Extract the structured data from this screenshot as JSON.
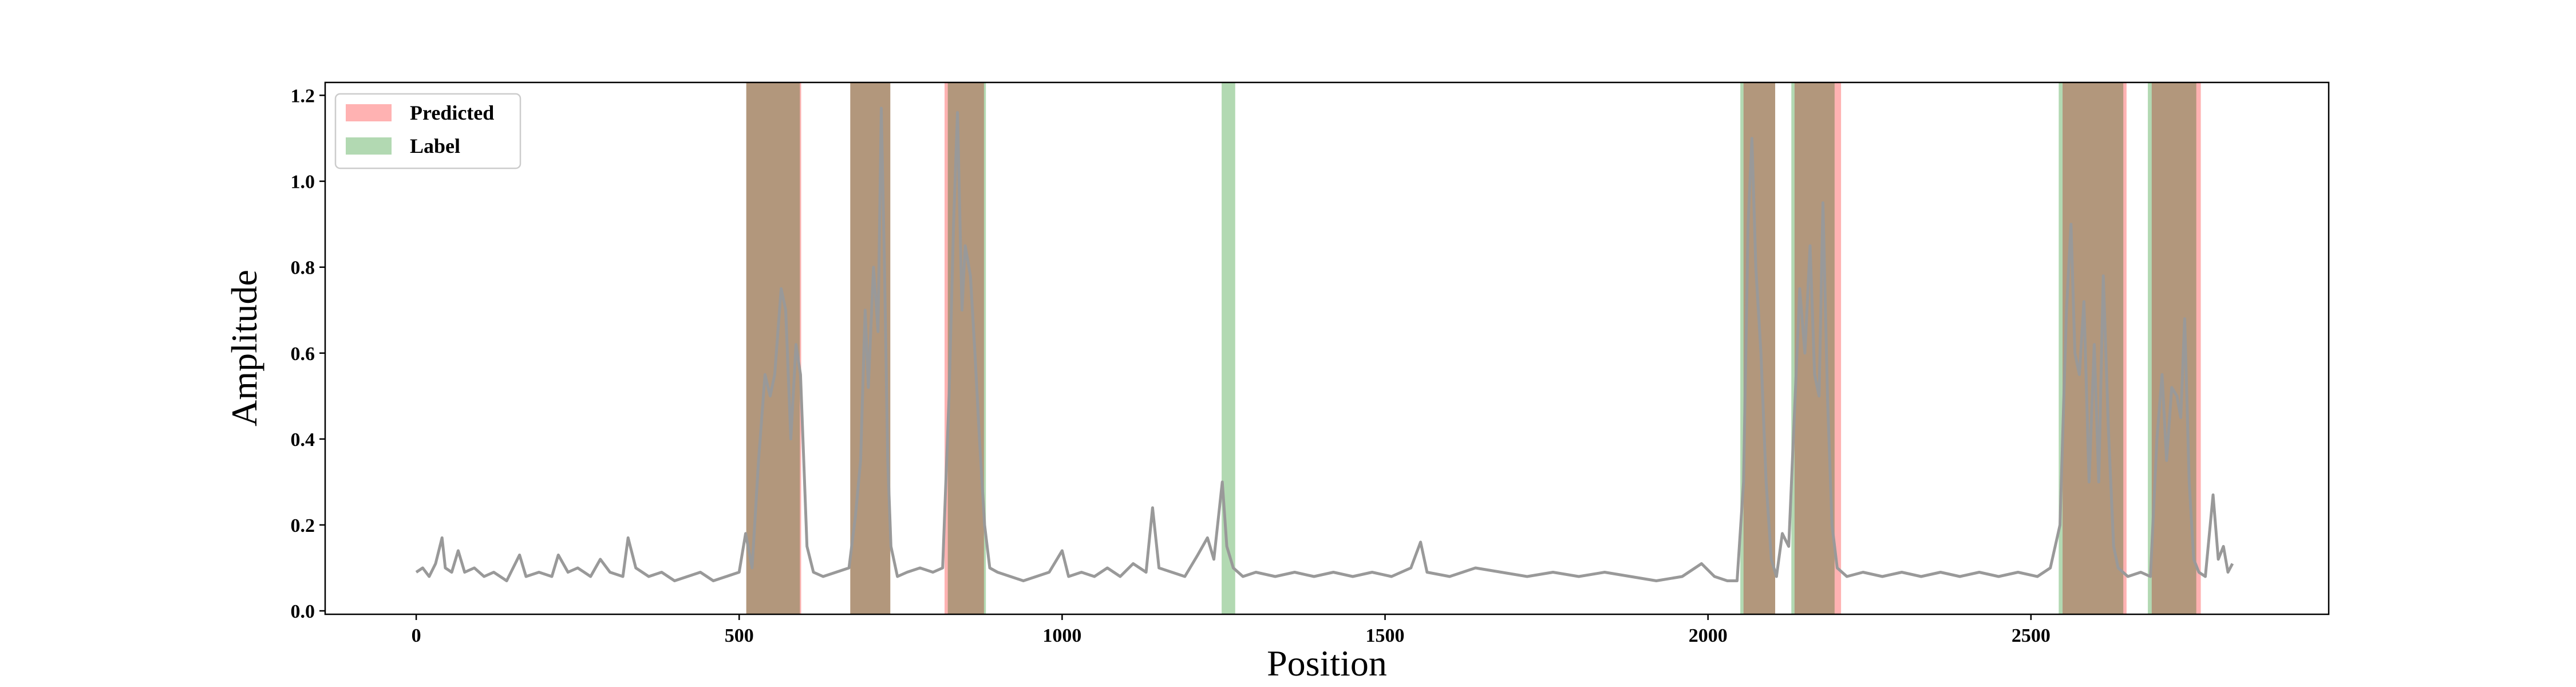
{
  "chart_data": {
    "type": "line",
    "xlabel": "Position",
    "ylabel": "Amplitude",
    "xlim": [
      -141,
      2961
    ],
    "ylim": [
      -0.008,
      1.23
    ],
    "xticks": [
      0,
      500,
      1000,
      1500,
      2000,
      2500
    ],
    "yticks": [
      {
        "value": 0,
        "label": "0.0"
      },
      0.2,
      0.4,
      0.6,
      0.8,
      {
        "value": 1,
        "label": "1.0"
      },
      1.2
    ],
    "legend": "upper left",
    "x": [
      0,
      10,
      20,
      30,
      40,
      45,
      55,
      65,
      75,
      90,
      105,
      120,
      140,
      160,
      170,
      190,
      210,
      220,
      235,
      250,
      270,
      285,
      300,
      320,
      328,
      340,
      360,
      380,
      400,
      420,
      440,
      460,
      480,
      500,
      510,
      520,
      530,
      540,
      548,
      555,
      565,
      572,
      580,
      588,
      595,
      605,
      615,
      630,
      650,
      670,
      680,
      688,
      695,
      700,
      708,
      715,
      720,
      725,
      730,
      735,
      745,
      760,
      780,
      800,
      815,
      825,
      832,
      838,
      845,
      850,
      858,
      865,
      872,
      880,
      888,
      900,
      920,
      940,
      960,
      980,
      1000,
      1010,
      1030,
      1050,
      1070,
      1090,
      1110,
      1130,
      1140,
      1150,
      1170,
      1190,
      1210,
      1225,
      1235,
      1248,
      1255,
      1265,
      1280,
      1300,
      1330,
      1360,
      1390,
      1420,
      1450,
      1480,
      1510,
      1540,
      1555,
      1565,
      1600,
      1640,
      1680,
      1720,
      1760,
      1800,
      1840,
      1880,
      1920,
      1960,
      1990,
      2010,
      2030,
      2045,
      2055,
      2062,
      2068,
      2074,
      2082,
      2090,
      2098,
      2106,
      2115,
      2125,
      2135,
      2142,
      2150,
      2158,
      2165,
      2172,
      2178,
      2185,
      2192,
      2200,
      2215,
      2240,
      2270,
      2300,
      2330,
      2360,
      2390,
      2420,
      2450,
      2480,
      2510,
      2530,
      2545,
      2555,
      2562,
      2568,
      2575,
      2582,
      2590,
      2598,
      2605,
      2612,
      2620,
      2628,
      2635,
      2650,
      2670,
      2685,
      2695,
      2703,
      2710,
      2718,
      2726,
      2732,
      2738,
      2745,
      2752,
      2760,
      2770,
      2782,
      2790,
      2798,
      2805,
      2812
    ],
    "series": [
      {
        "color": "#999999",
        "values": [
          0.09,
          0.1,
          0.08,
          0.11,
          0.17,
          0.1,
          0.09,
          0.14,
          0.09,
          0.1,
          0.08,
          0.09,
          0.07,
          0.13,
          0.08,
          0.09,
          0.08,
          0.13,
          0.09,
          0.1,
          0.08,
          0.12,
          0.09,
          0.08,
          0.17,
          0.1,
          0.08,
          0.09,
          0.07,
          0.08,
          0.09,
          0.07,
          0.08,
          0.09,
          0.18,
          0.1,
          0.35,
          0.55,
          0.5,
          0.55,
          0.75,
          0.7,
          0.4,
          0.62,
          0.55,
          0.15,
          0.09,
          0.08,
          0.09,
          0.1,
          0.22,
          0.35,
          0.7,
          0.52,
          0.8,
          0.65,
          1.17,
          0.8,
          0.35,
          0.15,
          0.08,
          0.09,
          0.1,
          0.09,
          0.1,
          0.5,
          0.9,
          1.16,
          0.7,
          0.85,
          0.78,
          0.6,
          0.4,
          0.2,
          0.1,
          0.09,
          0.08,
          0.07,
          0.08,
          0.09,
          0.14,
          0.08,
          0.09,
          0.08,
          0.1,
          0.08,
          0.11,
          0.09,
          0.24,
          0.1,
          0.09,
          0.08,
          0.13,
          0.17,
          0.12,
          0.3,
          0.15,
          0.1,
          0.08,
          0.09,
          0.08,
          0.09,
          0.08,
          0.09,
          0.08,
          0.09,
          0.08,
          0.1,
          0.16,
          0.09,
          0.08,
          0.1,
          0.09,
          0.08,
          0.09,
          0.08,
          0.09,
          0.08,
          0.07,
          0.08,
          0.11,
          0.08,
          0.07,
          0.07,
          0.3,
          0.9,
          1.1,
          0.8,
          0.6,
          0.3,
          0.12,
          0.08,
          0.18,
          0.15,
          0.5,
          0.75,
          0.6,
          0.85,
          0.55,
          0.5,
          0.95,
          0.5,
          0.2,
          0.1,
          0.08,
          0.09,
          0.08,
          0.09,
          0.08,
          0.09,
          0.08,
          0.09,
          0.08,
          0.09,
          0.08,
          0.1,
          0.2,
          0.7,
          0.9,
          0.6,
          0.55,
          0.72,
          0.3,
          0.62,
          0.3,
          0.78,
          0.42,
          0.15,
          0.1,
          0.08,
          0.09,
          0.08,
          0.4,
          0.55,
          0.35,
          0.52,
          0.5,
          0.45,
          0.68,
          0.3,
          0.12,
          0.09,
          0.08,
          0.27,
          0.12,
          0.15,
          0.09,
          0.11
        ]
      }
    ],
    "regions": [
      {
        "name": "Predicted",
        "color": "#ff0000",
        "alpha": 0.3,
        "intervals": [
          [
            511,
            596
          ],
          [
            672,
            734
          ],
          [
            818,
            879
          ],
          [
            2055,
            2104
          ],
          [
            2134,
            2206
          ],
          [
            2549,
            2648
          ],
          [
            2687,
            2763
          ]
        ]
      },
      {
        "name": "Label",
        "color": "#008000",
        "alpha": 0.3,
        "intervals": [
          [
            511,
            594
          ],
          [
            672,
            734
          ],
          [
            823,
            882
          ],
          [
            1247,
            1268
          ],
          [
            2050,
            2104
          ],
          [
            2129,
            2196
          ],
          [
            2543,
            2643
          ],
          [
            2681,
            2756
          ]
        ]
      }
    ]
  }
}
